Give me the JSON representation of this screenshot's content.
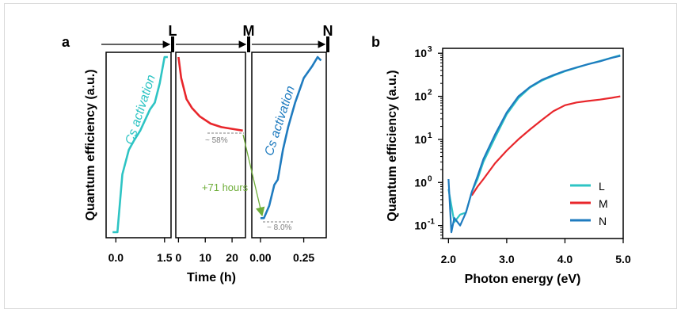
{
  "figure": {
    "colors": {
      "L": "#2ec4c4",
      "M": "#e8262b",
      "N": "#1f7bbf",
      "annotation": "#6fae3a",
      "note": "#7f7f7f"
    }
  },
  "panel_a": {
    "label": "a",
    "ylabel": "Quantum efficiency (a.u.)",
    "xlabel": "Time (h)",
    "markers": [
      "L",
      "M",
      "N"
    ],
    "activation_label_1": "Cs activation",
    "activation_label_2": "Cs activation",
    "pct_m": "~ 58%",
    "pct_n": "~ 8.0%",
    "hours_label": "+71 hours",
    "sub1_ticks": [
      "0.0",
      "1.5"
    ],
    "sub2_ticks": [
      "0",
      "10",
      "20"
    ],
    "sub3_ticks": [
      "0.00",
      "0.25"
    ]
  },
  "panel_b": {
    "label": "b",
    "ylabel": "Quantum efficiency (a.u.)",
    "xlabel": "Photon energy (eV)",
    "xticks": [
      "2.0",
      "3.0",
      "4.0",
      "5.0"
    ],
    "yticks": [
      {
        "base": "10",
        "exp": "3"
      },
      {
        "base": "10",
        "exp": "2"
      },
      {
        "base": "10",
        "exp": "1"
      },
      {
        "base": "10",
        "exp": "0"
      },
      {
        "base": "10",
        "exp": "-1"
      }
    ],
    "legend": [
      "L",
      "M",
      "N"
    ]
  },
  "chart_data": [
    {
      "type": "line",
      "title": "",
      "ylabel": "Quantum efficiency (a.u.)",
      "xlabel": "Time (h)",
      "yticks_shown": false,
      "series": [
        {
          "name": "L",
          "stage": "Cs activation",
          "xlim": [
            -0.3,
            1.7
          ],
          "x": [
            -0.1,
            0.05,
            0.2,
            0.4,
            0.55,
            0.75,
            0.9,
            1.05,
            1.2,
            1.35,
            1.5,
            1.6
          ],
          "y": [
            0.0,
            0.0,
            0.33,
            0.47,
            0.52,
            0.58,
            0.64,
            0.7,
            0.74,
            0.85,
            1.0,
            1.0
          ]
        },
        {
          "name": "M",
          "xlim": [
            -1,
            25
          ],
          "x": [
            0,
            1,
            3,
            5,
            8,
            12,
            16,
            20,
            24
          ],
          "y": [
            1.0,
            0.88,
            0.76,
            0.71,
            0.66,
            0.62,
            0.6,
            0.59,
            0.58
          ]
        },
        {
          "name": "N",
          "stage": "Cs activation",
          "xlim": [
            -0.05,
            0.38
          ],
          "x": [
            0.0,
            0.02,
            0.05,
            0.08,
            0.1,
            0.13,
            0.16,
            0.2,
            0.25,
            0.3,
            0.33,
            0.35
          ],
          "y": [
            0.08,
            0.08,
            0.15,
            0.27,
            0.3,
            0.47,
            0.6,
            0.74,
            0.88,
            0.95,
            1.0,
            0.98
          ]
        }
      ]
    },
    {
      "type": "line",
      "title": "",
      "xlabel": "Photon energy (eV)",
      "ylabel": "Quantum efficiency (a.u.)",
      "xlim": [
        1.9,
        5.0
      ],
      "ylim": [
        0.05,
        1300
      ],
      "yscale": "log",
      "legend": "bottom-right",
      "series": [
        {
          "name": "L",
          "x": [
            2.0,
            2.1,
            2.2,
            2.3,
            2.4,
            2.5,
            2.6,
            2.8,
            3.0,
            3.2,
            3.4,
            3.6,
            3.8,
            4.0,
            4.2,
            4.4,
            4.6,
            4.8,
            4.95
          ],
          "y": [
            0.7,
            0.12,
            0.18,
            0.2,
            0.6,
            1.2,
            3,
            11,
            38,
            90,
            160,
            230,
            300,
            380,
            460,
            560,
            660,
            790,
            900
          ]
        },
        {
          "name": "M",
          "x": [
            2.4,
            2.5,
            2.6,
            2.8,
            3.0,
            3.2,
            3.4,
            3.6,
            3.8,
            4.0,
            4.2,
            4.4,
            4.6,
            4.8,
            4.95
          ],
          "y": [
            0.5,
            0.8,
            1.2,
            2.8,
            5.5,
            10,
            17,
            28,
            45,
            62,
            72,
            78,
            84,
            92,
            100
          ]
        },
        {
          "name": "N",
          "x": [
            2.0,
            2.05,
            2.1,
            2.2,
            2.3,
            2.4,
            2.5,
            2.6,
            2.8,
            3.0,
            3.2,
            3.4,
            3.6,
            3.8,
            4.0,
            4.2,
            4.4,
            4.6,
            4.8,
            4.95
          ],
          "y": [
            1.2,
            0.07,
            0.15,
            0.1,
            0.2,
            0.6,
            1.4,
            3.5,
            13,
            42,
            100,
            165,
            240,
            310,
            390,
            470,
            560,
            650,
            780,
            870
          ]
        }
      ]
    }
  ]
}
